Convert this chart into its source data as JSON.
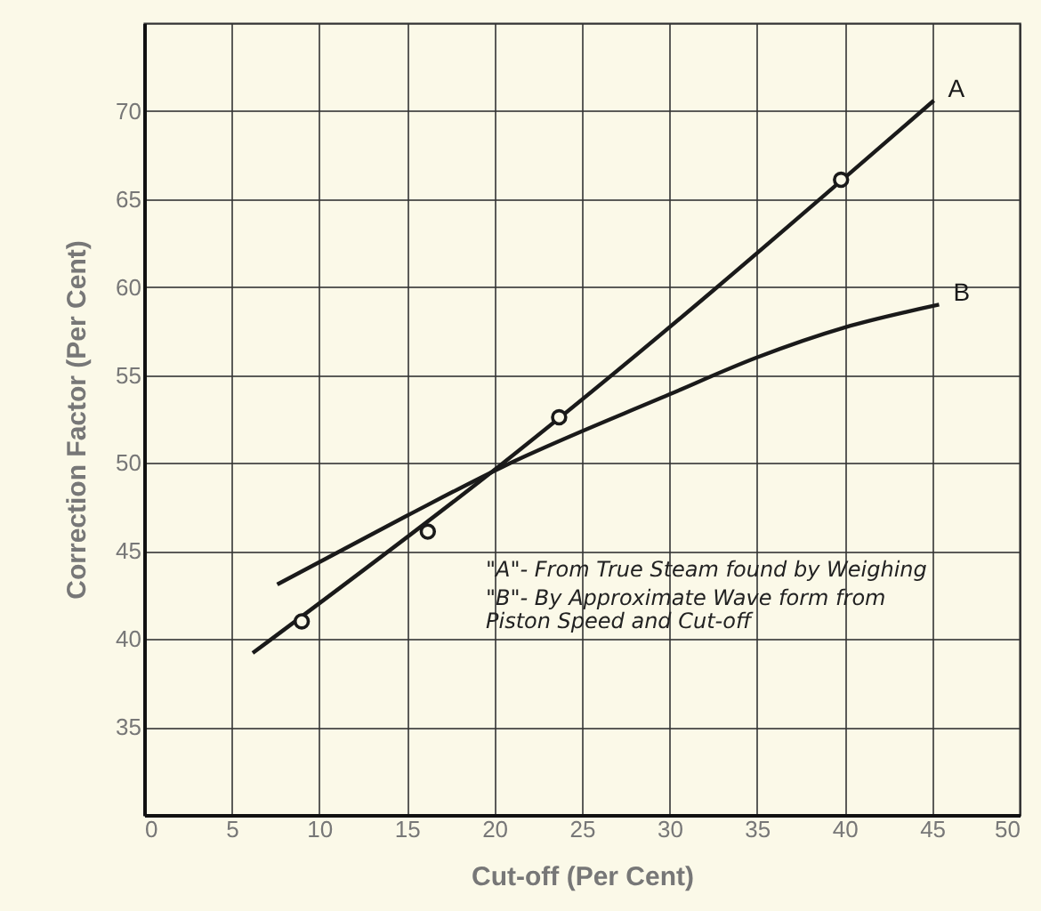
{
  "chart_data": {
    "type": "line",
    "xlabel": "Cut-off (Per Cent)",
    "ylabel": "Correction Factor (Per Cent)",
    "xlim": [
      0,
      50
    ],
    "xticks": [
      0,
      5,
      10,
      15,
      20,
      25,
      30,
      35,
      40,
      45,
      50
    ],
    "ylim": [
      30,
      75
    ],
    "yticks": [
      35,
      40,
      45,
      50,
      55,
      60,
      65,
      70
    ],
    "grid": true,
    "marker": "none",
    "series": [
      {
        "name": "A",
        "color": "#1a1a1a",
        "x": [
          6.2,
          20.5,
          45.1
        ],
        "values": [
          39.2,
          50.0,
          70.6
        ]
      },
      {
        "name": "B",
        "color": "#1a1a1a",
        "x": [
          7.6,
          15,
          20.5,
          30,
          35,
          40,
          45.4
        ],
        "values": [
          43.1,
          47.0,
          49.8,
          53.9,
          56.0,
          57.7,
          59.0
        ]
      },
      {
        "type": "scatter",
        "marker": "circle",
        "color": "#1a1a1a",
        "x": [
          9,
          16.2,
          23.7,
          39.8
        ],
        "values": [
          41,
          46.1,
          52.6,
          66.1
        ]
      }
    ],
    "annotations": [
      "\"A\"- From True Steam found by Weighing",
      "\"B\"- By Approximate Wave form from Piston Speed and Cut-off"
    ]
  }
}
